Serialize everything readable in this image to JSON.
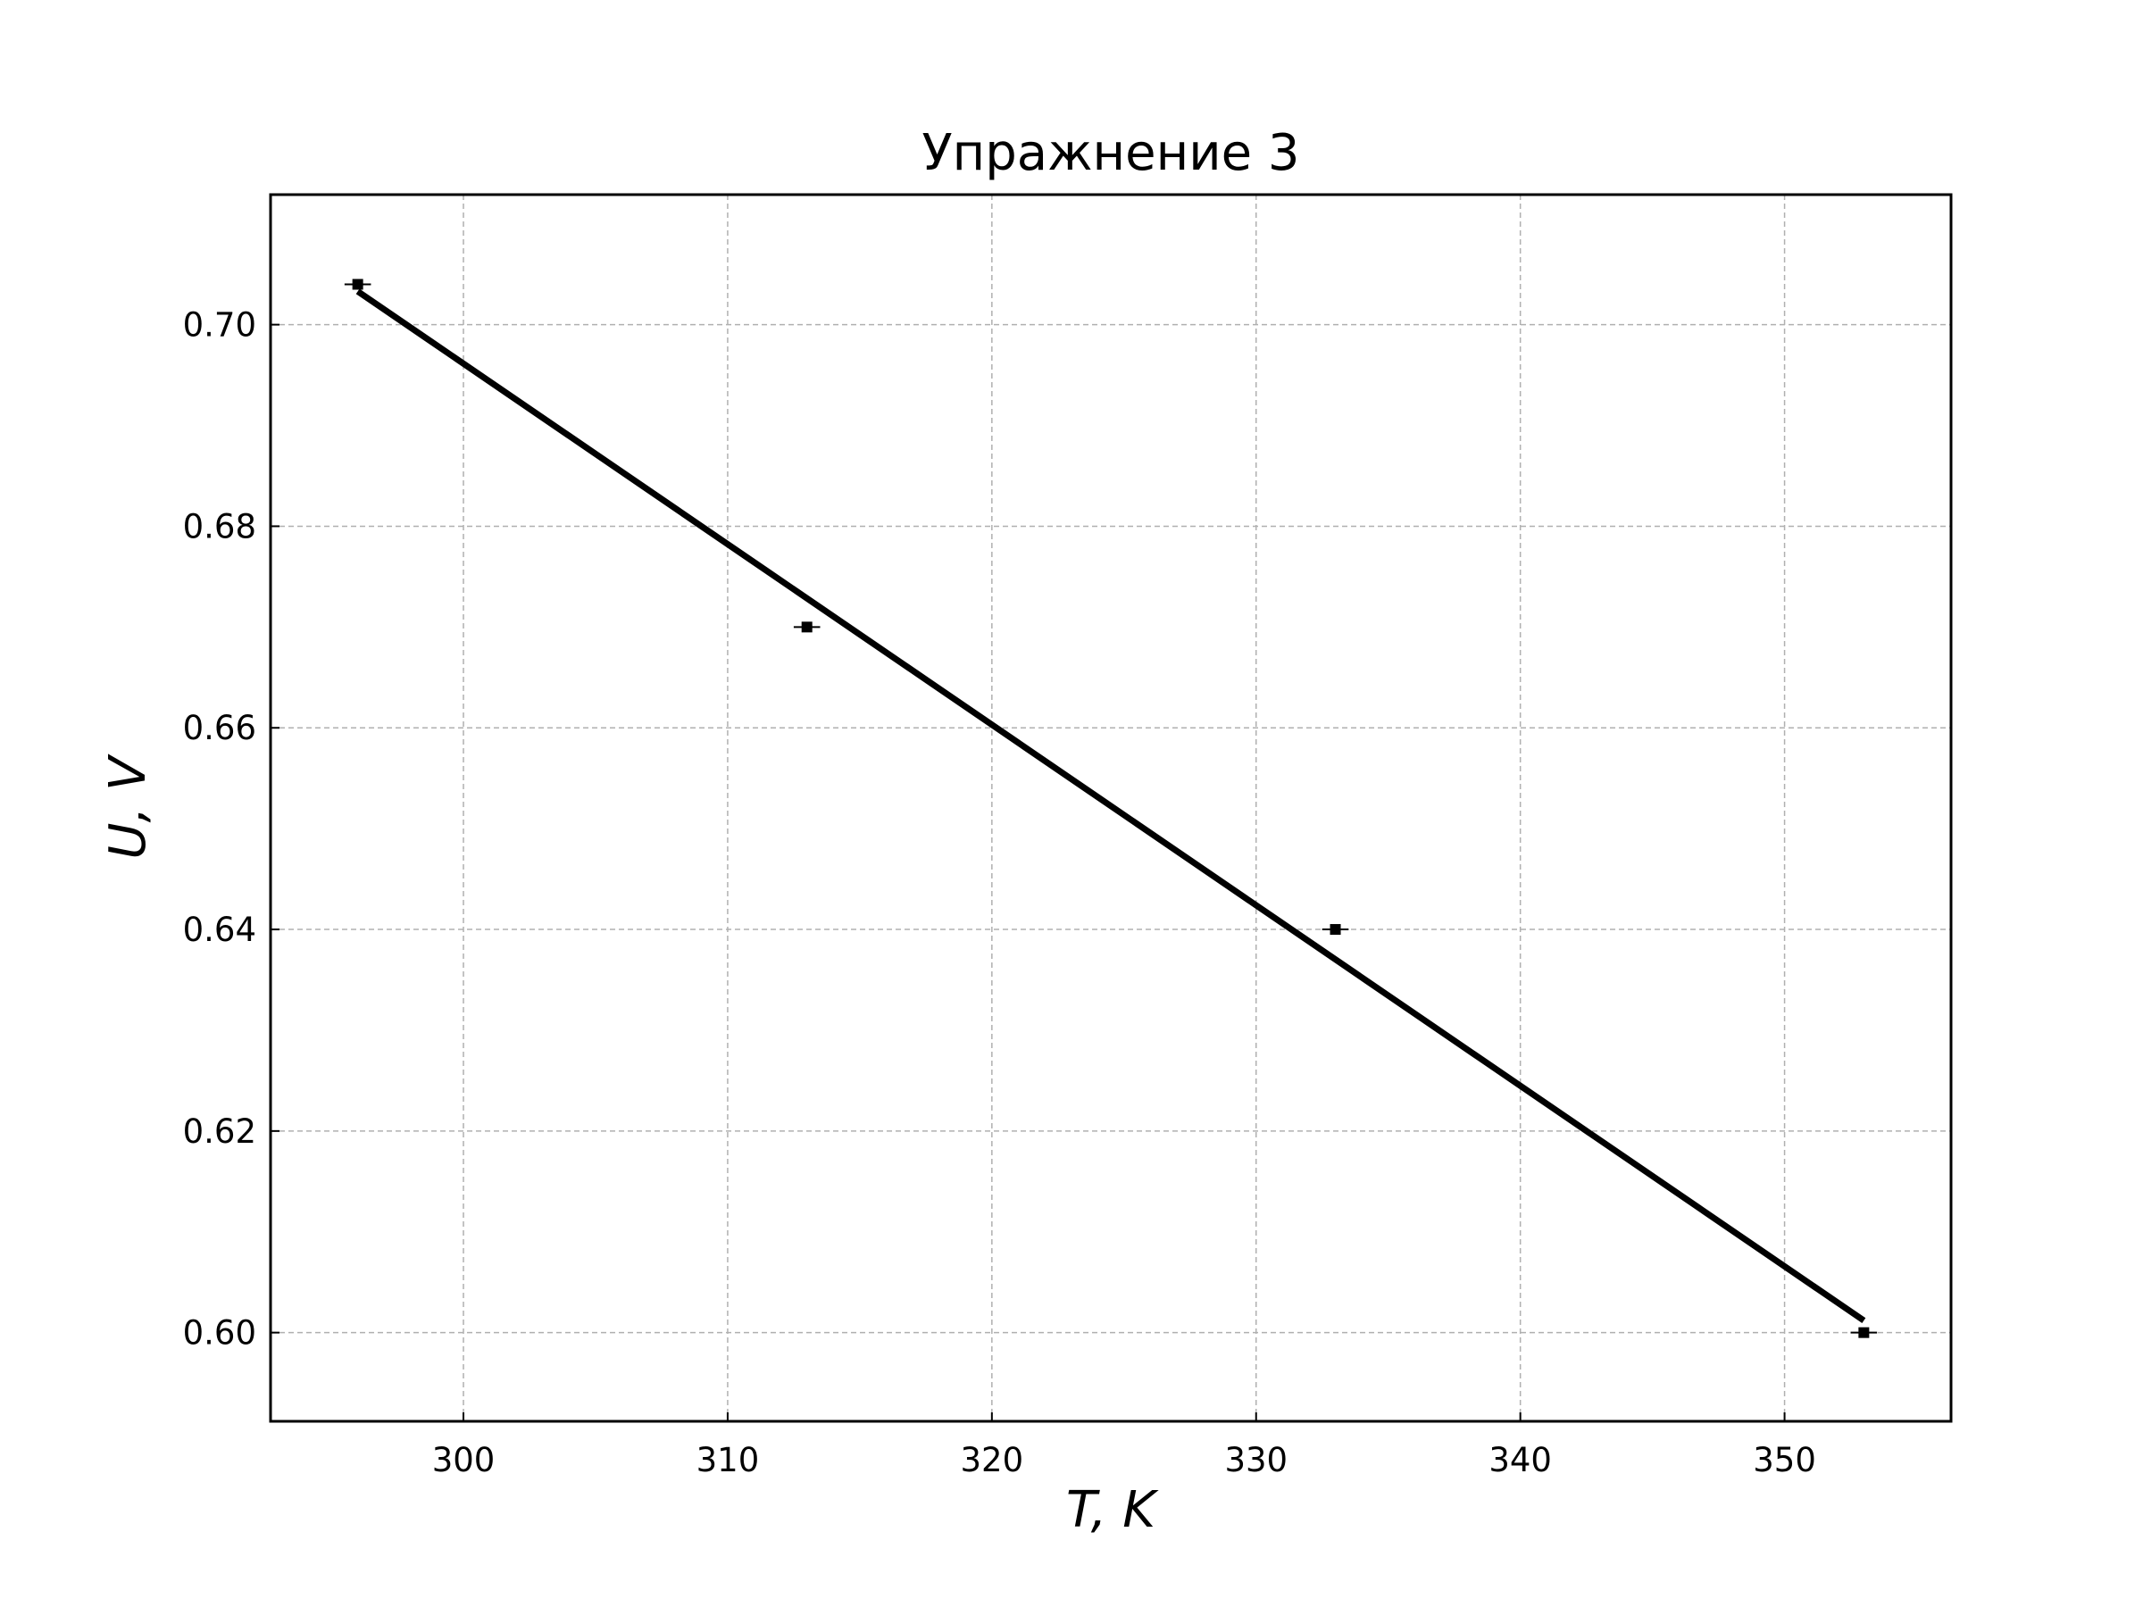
{
  "chart_data": {
    "type": "scatter",
    "title": "Упражнение 3",
    "xlabel": "T, K",
    "ylabel": "U, V",
    "xlim": [
      292.7,
      356.3
    ],
    "ylim": [
      0.5912,
      0.7129
    ],
    "x_ticks": [
      300,
      310,
      320,
      330,
      340,
      350
    ],
    "y_ticks": [
      0.6,
      0.62,
      0.64,
      0.66,
      0.68,
      0.7
    ],
    "x_tick_labels": [
      "300",
      "310",
      "320",
      "330",
      "340",
      "350"
    ],
    "y_tick_labels": [
      "0.60",
      "0.62",
      "0.64",
      "0.66",
      "0.68",
      "0.70"
    ],
    "grid": true,
    "series": [
      {
        "type": "scatter",
        "x": [
          296,
          313,
          333,
          353
        ],
        "y": [
          0.704,
          0.67,
          0.64,
          0.6
        ],
        "x_err": 0.5,
        "color": "#000000"
      },
      {
        "type": "line",
        "x": [
          296,
          353
        ],
        "y": [
          0.7033,
          0.6012
        ],
        "color": "#000000"
      }
    ]
  }
}
